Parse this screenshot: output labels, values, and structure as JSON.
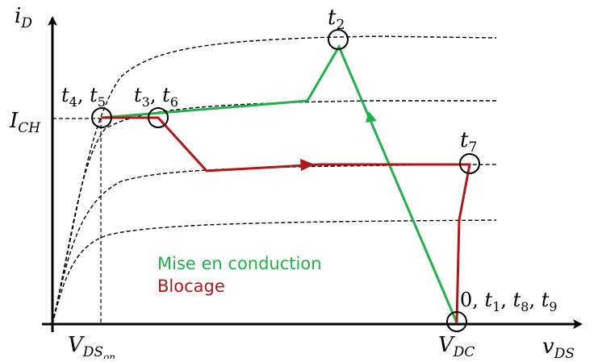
{
  "axes": {
    "y_symbol": "i",
    "y_sub": "D",
    "x_symbol": "v",
    "x_sub": "DS"
  },
  "labels": {
    "ich_symbol": "I",
    "ich_sub": "CH",
    "vdson_symbol": "V",
    "vdson_sub": "DS",
    "vdson_subsub": "on",
    "vdc_symbol": "V",
    "vdc_sub": "DC"
  },
  "time_points": {
    "t2": {
      "main": "t",
      "sub": "2"
    },
    "t7": {
      "main": "t",
      "sub": "7"
    },
    "t4t5": {
      "a": "t",
      "a_sub": "4",
      "sep": ", ",
      "b": "t",
      "b_sub": "5"
    },
    "t3t6": {
      "a": "t",
      "a_sub": "3",
      "sep": ", ",
      "b": "t",
      "b_sub": "6"
    },
    "origin": {
      "zero": "0, ",
      "a": "t",
      "a_sub": "1",
      "sep1": ", ",
      "b": "t",
      "b_sub": "8",
      "sep2": ", ",
      "c": "t",
      "c_sub": "9"
    }
  },
  "legend": {
    "turn_on": "Mise en conduction",
    "turn_off": "Blocage",
    "turn_on_color": "#22b04a",
    "turn_off_color": "#b01818"
  }
}
